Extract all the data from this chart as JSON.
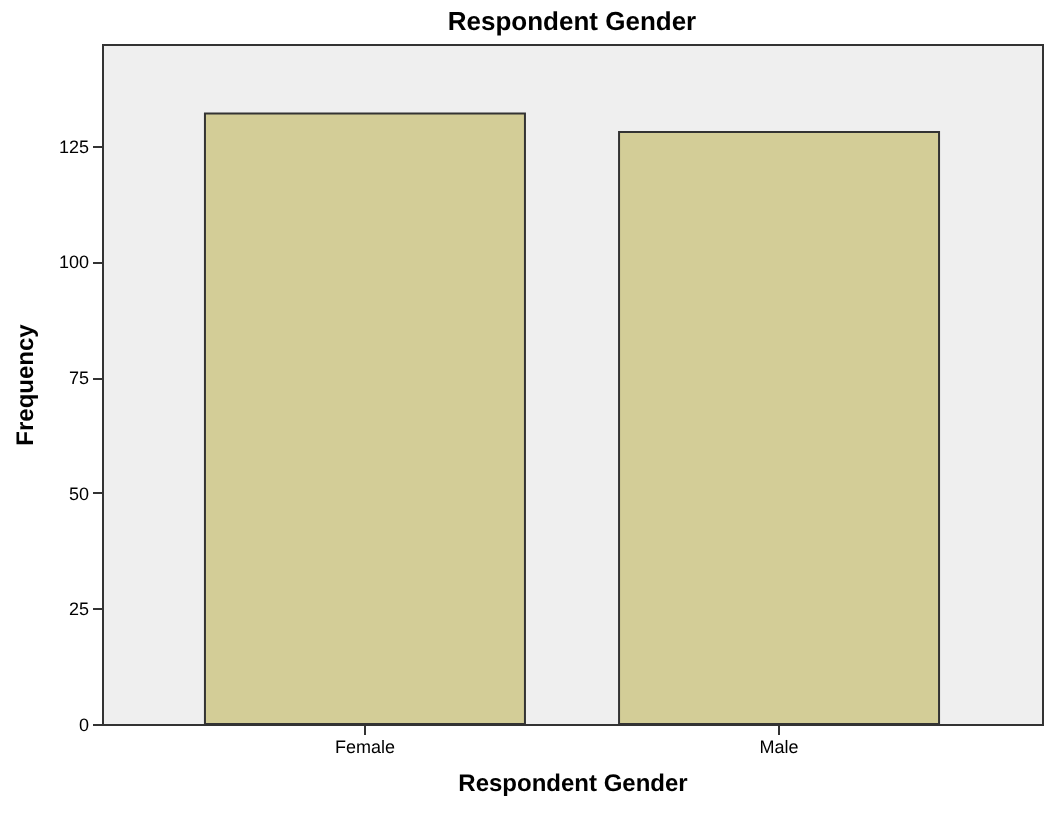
{
  "chart_data": {
    "type": "bar",
    "title": "Respondent Gender",
    "xlabel": "Respondent Gender",
    "ylabel": "Frequency",
    "categories": [
      "Female",
      "Male"
    ],
    "values": [
      132,
      128
    ],
    "color": "#d3cd97",
    "ylim": [
      0,
      147
    ],
    "yticks": [
      0,
      25,
      50,
      75,
      100,
      125
    ],
    "grid": false
  }
}
